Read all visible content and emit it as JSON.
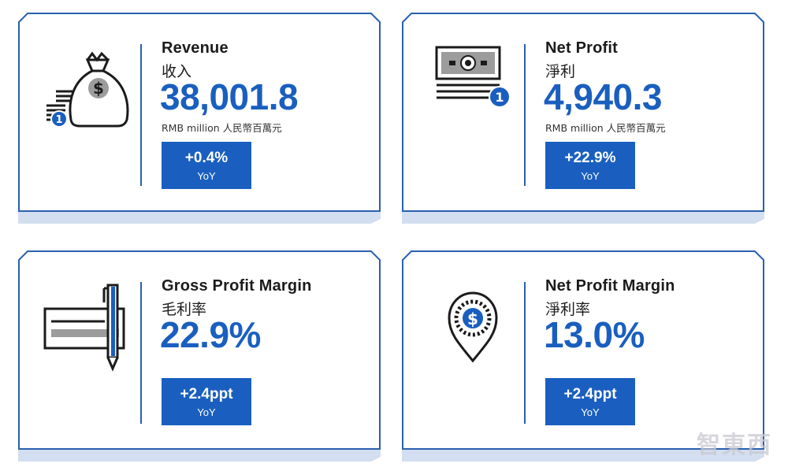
{
  "cards": [
    {
      "title_en": "Revenue",
      "title_zh": "收入",
      "value": "38,001.8",
      "unit": "RMB million 人民幣百萬元",
      "change": "+0.4%",
      "change_label": "YoY",
      "icon": "money-bag-icon"
    },
    {
      "title_en": "Net Profit",
      "title_zh": "淨利",
      "value": "4,940.3",
      "unit": "RMB million 人民幣百萬元",
      "change": "+22.9%",
      "change_label": "YoY",
      "icon": "banknote-icon"
    },
    {
      "title_en": "Gross Profit Margin",
      "title_zh": "毛利率",
      "value": "22.9%",
      "change": "+2.4ppt",
      "change_label": "YoY",
      "icon": "cheque-pen-icon"
    },
    {
      "title_en": "Net Profit Margin",
      "title_zh": "淨利率",
      "value": "13.0%",
      "change": "+2.4ppt",
      "change_label": "YoY",
      "icon": "dollar-location-pin-icon"
    }
  ],
  "colors": {
    "accent": "#1a5fbf",
    "frame": "#2a5fae",
    "shadow": "#d3def0",
    "icon": "#1b1b1b"
  },
  "watermark": "智東西"
}
